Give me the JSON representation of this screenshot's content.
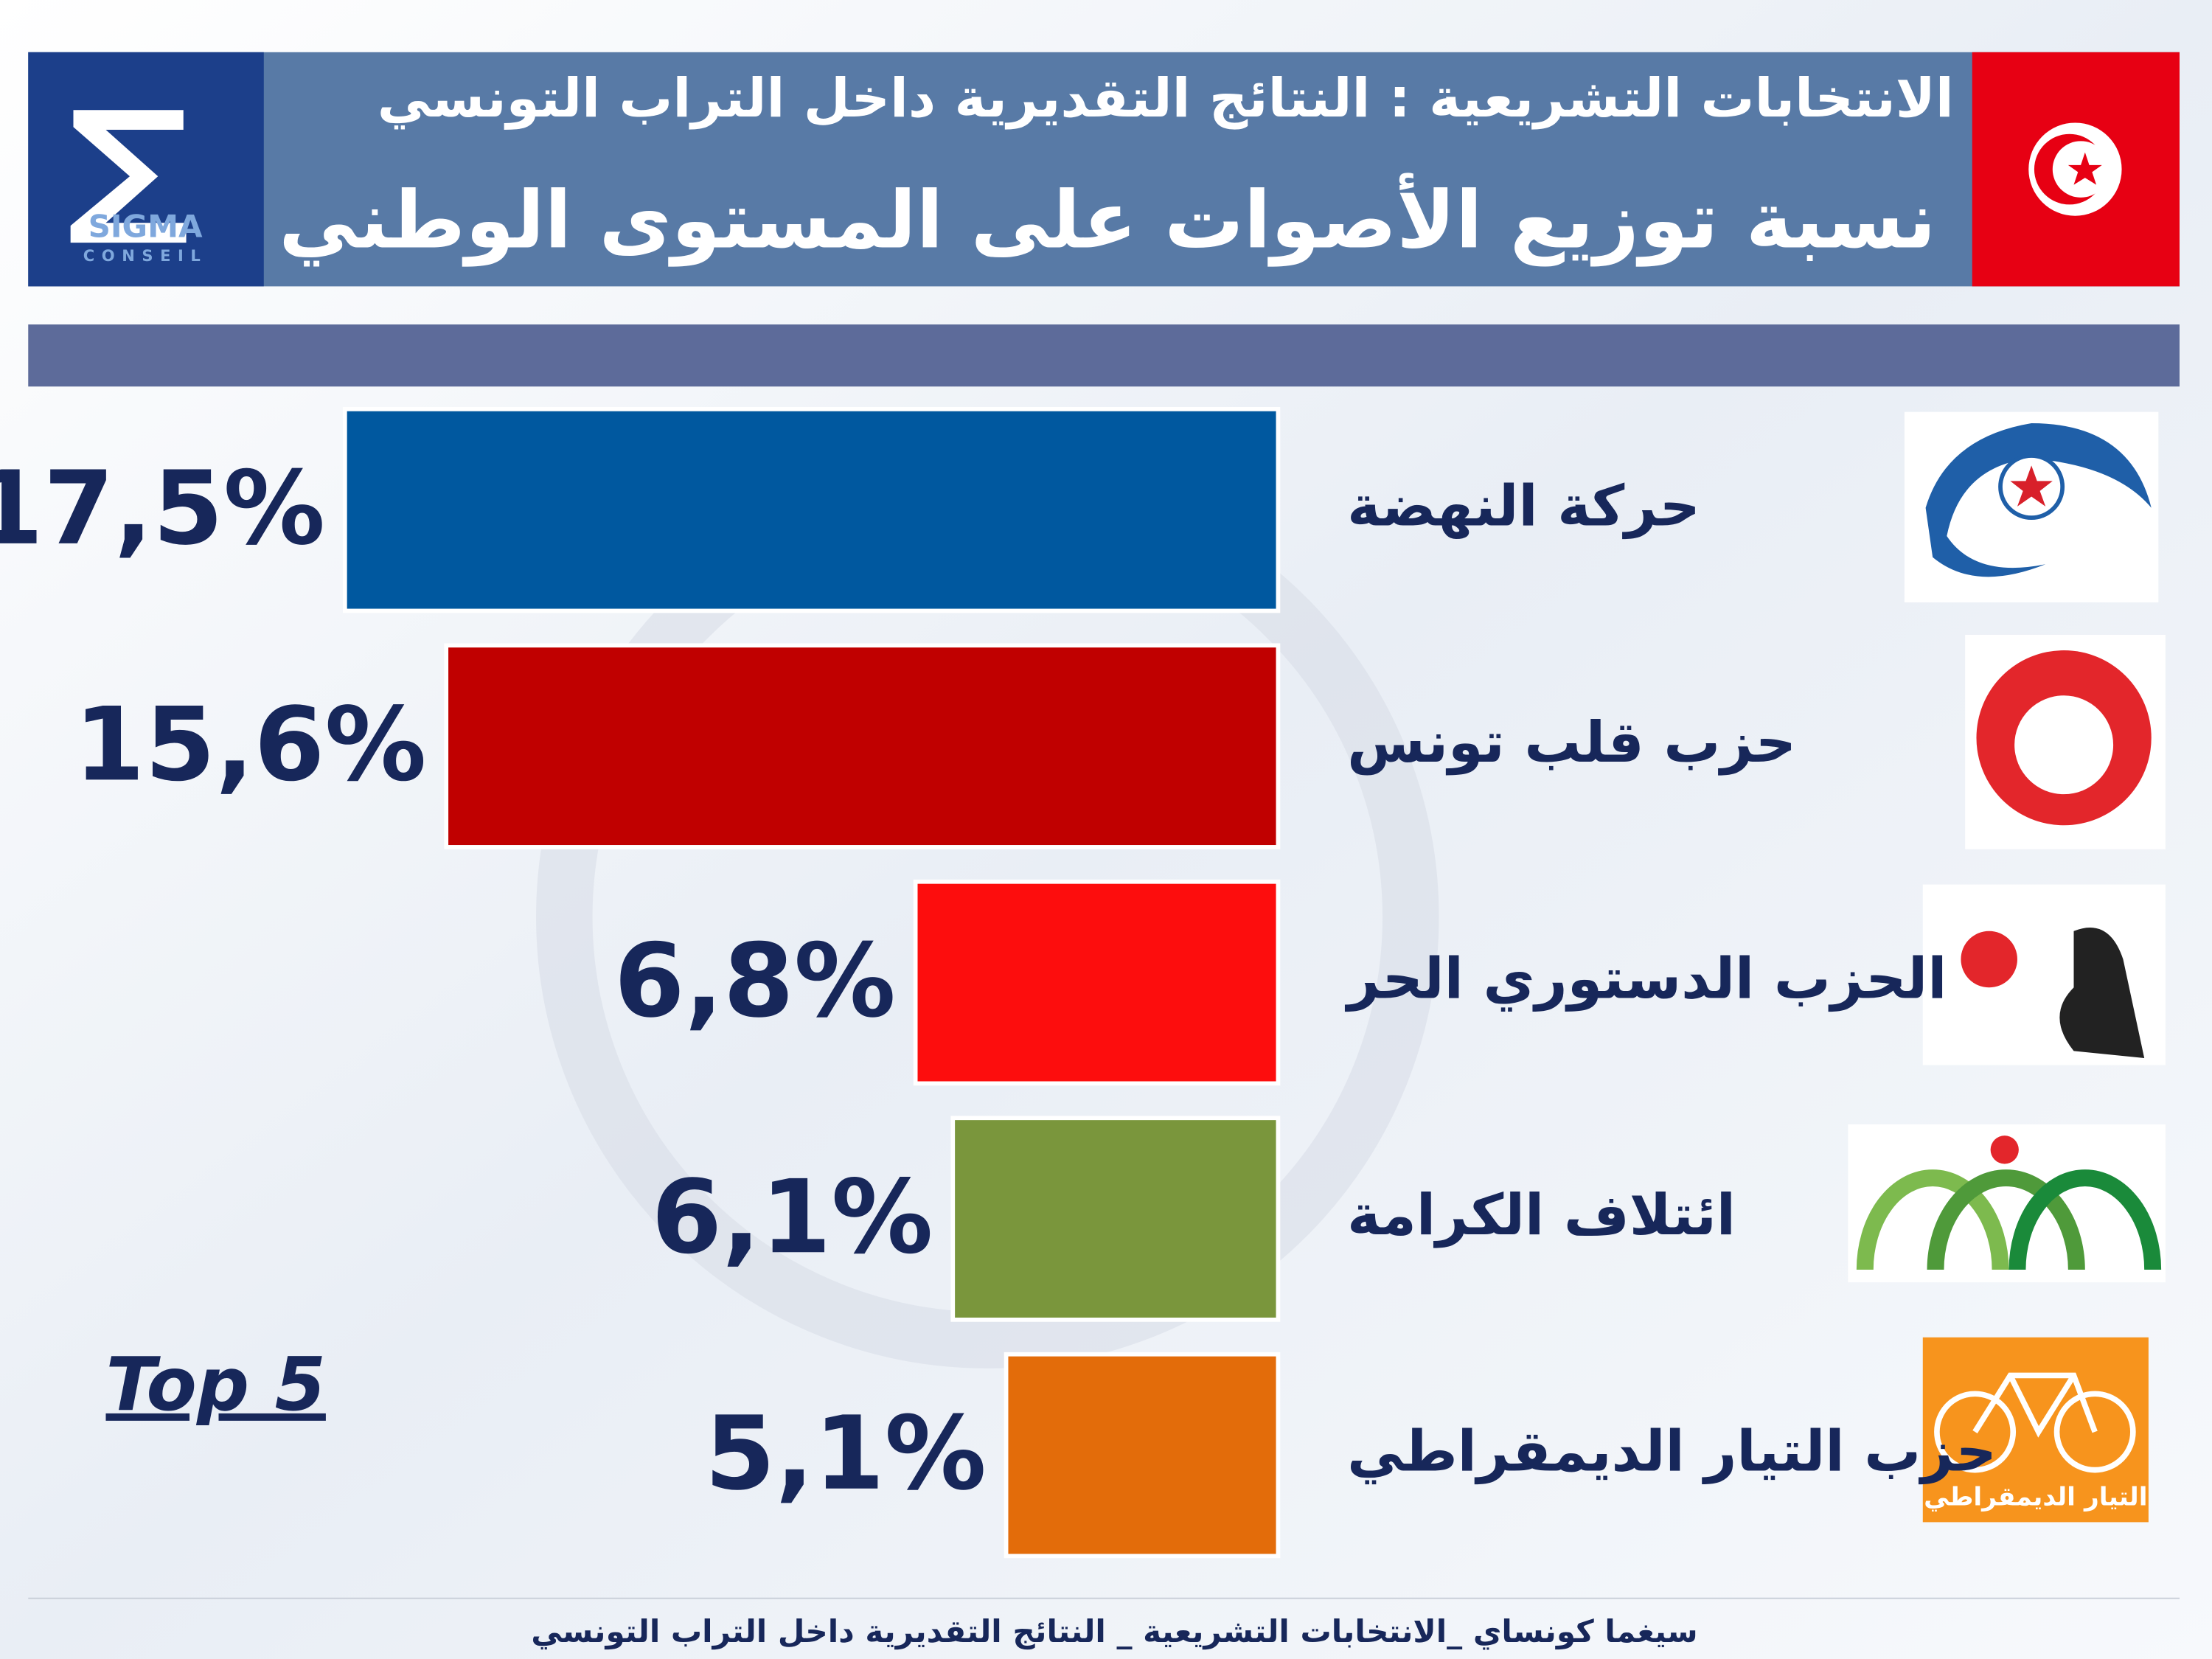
{
  "chart_data": {
    "type": "bar",
    "orientation": "horizontal",
    "title": "الانتخابات التشريعية : النتائج التقديرية داخل التراب التونسي",
    "subtitle": "نسبة توزيع الأصوات على المستوى الوطني",
    "brand": "SIGMA",
    "brand_tagline": "CONSEIL",
    "annotation": "Top 5",
    "logo_caption": "التيار الديمقراطي",
    "footer": "سيغما كونساي _الانتخابات التشريعية _ النتائج التقديرية داخل التراب التونسي",
    "categories": [
      "حركة النهضة",
      "حزب قلب تونس",
      "الحزب الدستوري الحر",
      "ائتلاف الكرامة",
      "حزب التيار الديمقراطي"
    ],
    "values": [
      17.5,
      15.6,
      6.8,
      6.1,
      5.1
    ],
    "value_labels": [
      "17,5%",
      "15,6%",
      "6,8%",
      "6,1%",
      "5,1%"
    ],
    "colors": [
      "#00589f",
      "#c00000",
      "#fd0d0d",
      "#7a963c",
      "#e36c0a"
    ]
  }
}
